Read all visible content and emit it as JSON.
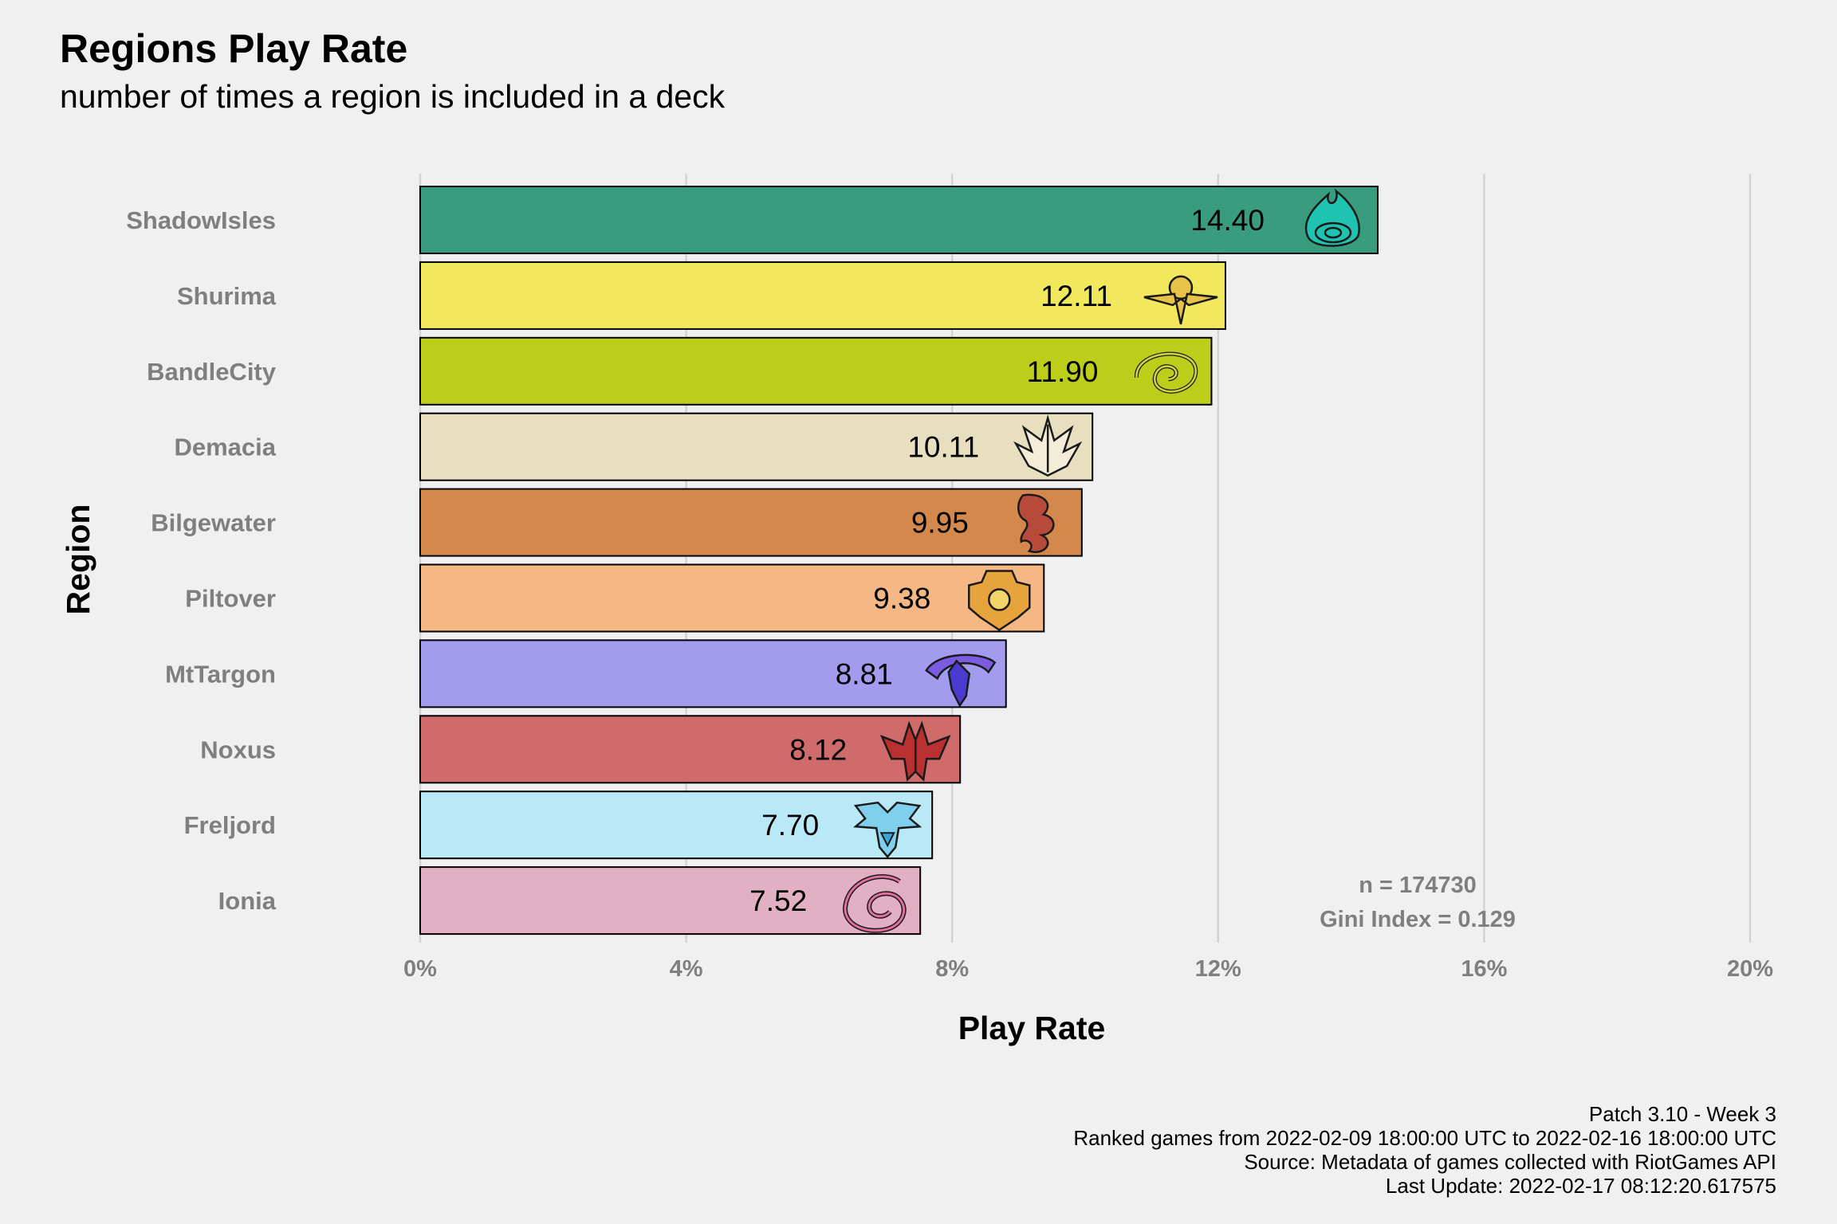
{
  "chart_data": {
    "type": "bar",
    "orientation": "horizontal",
    "title": "Regions Play Rate",
    "subtitle": "number of times a region is included in a deck",
    "xlabel": "Play Rate",
    "ylabel": "Region",
    "xlim": [
      0,
      20
    ],
    "xticks": [
      0,
      4,
      8,
      12,
      16,
      20
    ],
    "xtick_labels": [
      "0%",
      "4%",
      "8%",
      "12%",
      "16%",
      "20%"
    ],
    "grid": "vertical major gridlines",
    "categories": [
      "ShadowIsles",
      "Shurima",
      "BandleCity",
      "Demacia",
      "Bilgewater",
      "Piltover",
      "MtTargon",
      "Noxus",
      "Freljord",
      "Ionia"
    ],
    "values": [
      14.4,
      12.11,
      11.9,
      10.11,
      9.95,
      9.38,
      8.81,
      8.12,
      7.7,
      7.52
    ],
    "value_labels": [
      "14.40",
      "12.11",
      "11.90",
      "10.11",
      "9.95",
      "9.38",
      "8.81",
      "8.12",
      "7.70",
      "7.52"
    ],
    "colors": [
      "#3a9c7f",
      "#f2e85e",
      "#bccd1a",
      "#e8dec0",
      "#d4884c",
      "#f5b885",
      "#a39cee",
      "#cf6b6b",
      "#b9e9f7",
      "#e1b0c2"
    ],
    "icons": [
      "shadow-isles-icon",
      "shurima-icon",
      "bandle-city-icon",
      "demacia-icon",
      "bilgewater-icon",
      "piltover-icon",
      "mt-targon-icon",
      "noxus-icon",
      "freljord-icon",
      "ionia-icon"
    ],
    "annotations": [
      "n = 174730",
      "Gini Index = 0.129"
    ]
  },
  "caption": [
    "Patch 3.10 - Week 3",
    "Ranked games from 2022-02-09 18:00:00 UTC to 2022-02-16 18:00:00 UTC",
    "Source: Metadata of games collected with RiotGames API",
    "Last Update: 2022-02-17 08:12:20.617575"
  ]
}
